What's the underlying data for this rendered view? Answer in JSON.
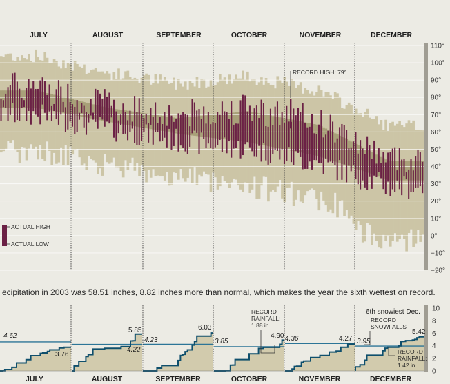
{
  "chart_data": [
    {
      "type": "bar",
      "title": "",
      "months": [
        "JULY",
        "AUGUST",
        "SEPTEMBER",
        "OCTOBER",
        "NOVEMBER",
        "DECEMBER"
      ],
      "y_ticks": [
        "110°",
        "100°",
        "90°",
        "80°",
        "70°",
        "60°",
        "50°",
        "40°",
        "30°",
        "20°",
        "10°",
        "0°",
        "−10°",
        "−20°"
      ],
      "ylim": [
        -20,
        110
      ],
      "legend": {
        "high": "ACTUAL HIGH",
        "low": "ACTUAL LOW"
      },
      "annotation": {
        "text": "RECORD HIGH: 79°",
        "month": "NOVEMBER",
        "value": 79
      },
      "series": [
        {
          "name": "ACTUAL HIGH",
          "values": [
            88,
            78,
            72,
            76,
            68,
            47
          ]
        },
        {
          "name": "ACTUAL LOW",
          "values": [
            70,
            62,
            55,
            50,
            42,
            28
          ]
        }
      ]
    },
    {
      "type": "line",
      "months": [
        "JULY",
        "AUGUST",
        "SEPTEMBER",
        "OCTOBER",
        "NOVEMBER",
        "DECEMBER"
      ],
      "y_ticks": [
        "10",
        "8",
        "6",
        "4",
        "2",
        "0"
      ],
      "ylim": [
        0,
        10
      ],
      "normal": [
        "4.62",
        "4.22",
        "4.23",
        "3.85",
        "4.36",
        "3.95"
      ],
      "actual": [
        "3.76",
        "5.85",
        "6.03",
        "4.90",
        "4.27",
        "5.42"
      ],
      "annotations": {
        "oct_record": [
          "RECORD",
          "RAINFALL:",
          "1.88 in."
        ],
        "dec_snow_title": "6th snowiest Dec.",
        "dec_snow": [
          "RECORD",
          "SNOWFALLS"
        ],
        "dec_rain": [
          "RECORD",
          "RAINFALL:",
          "1.42 in."
        ]
      }
    }
  ],
  "precip_note": "ecipitation in 2003 was 58.51 inches, 8.82 inches more than normal, which makes the year the sixth wettest on record.",
  "colors": {
    "record_band": "#ccc5a6",
    "normal_band": "#a8a079",
    "bar": "#6b2145",
    "normal_line": "#2c7597",
    "actual_line": "#0f4f6c",
    "area": "#d2cbad"
  }
}
